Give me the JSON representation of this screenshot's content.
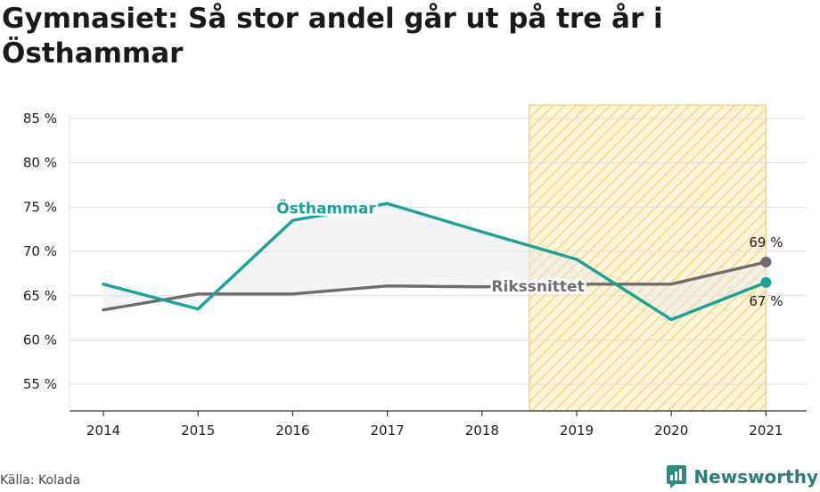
{
  "title": "Gymnasiet: Så stor andel går ut på tre år i Östhammar",
  "source": "Källa: Kolada",
  "brand": "Newsworthy",
  "chart_data": {
    "type": "line",
    "title": "Gymnasiet: Så stor andel går ut på tre år i Östhammar",
    "xlabel": "",
    "ylabel": "",
    "categories": [
      "2014",
      "2015",
      "2016",
      "2017",
      "2018",
      "2019",
      "2020",
      "2021"
    ],
    "ylim": [
      52,
      86.5
    ],
    "y_ticks": [
      55,
      60,
      65,
      70,
      75,
      80,
      85
    ],
    "y_tick_labels": [
      "55 %",
      "60 %",
      "65 %",
      "70 %",
      "75 %",
      "80 %",
      "85 %"
    ],
    "highlight_range": [
      "2018.5",
      "2021"
    ],
    "series": [
      {
        "name": "Östhammar",
        "color": "#17a398",
        "values": [
          66.3,
          63.5,
          73.5,
          75.4,
          72.2,
          69.1,
          62.3,
          66.5
        ],
        "end_label": "67 %"
      },
      {
        "name": "Rikssnittet",
        "color": "#6f6a73",
        "values": [
          63.4,
          65.2,
          65.2,
          66.1,
          66.0,
          66.3,
          66.3,
          68.8
        ],
        "end_label": "69 %"
      }
    ]
  }
}
